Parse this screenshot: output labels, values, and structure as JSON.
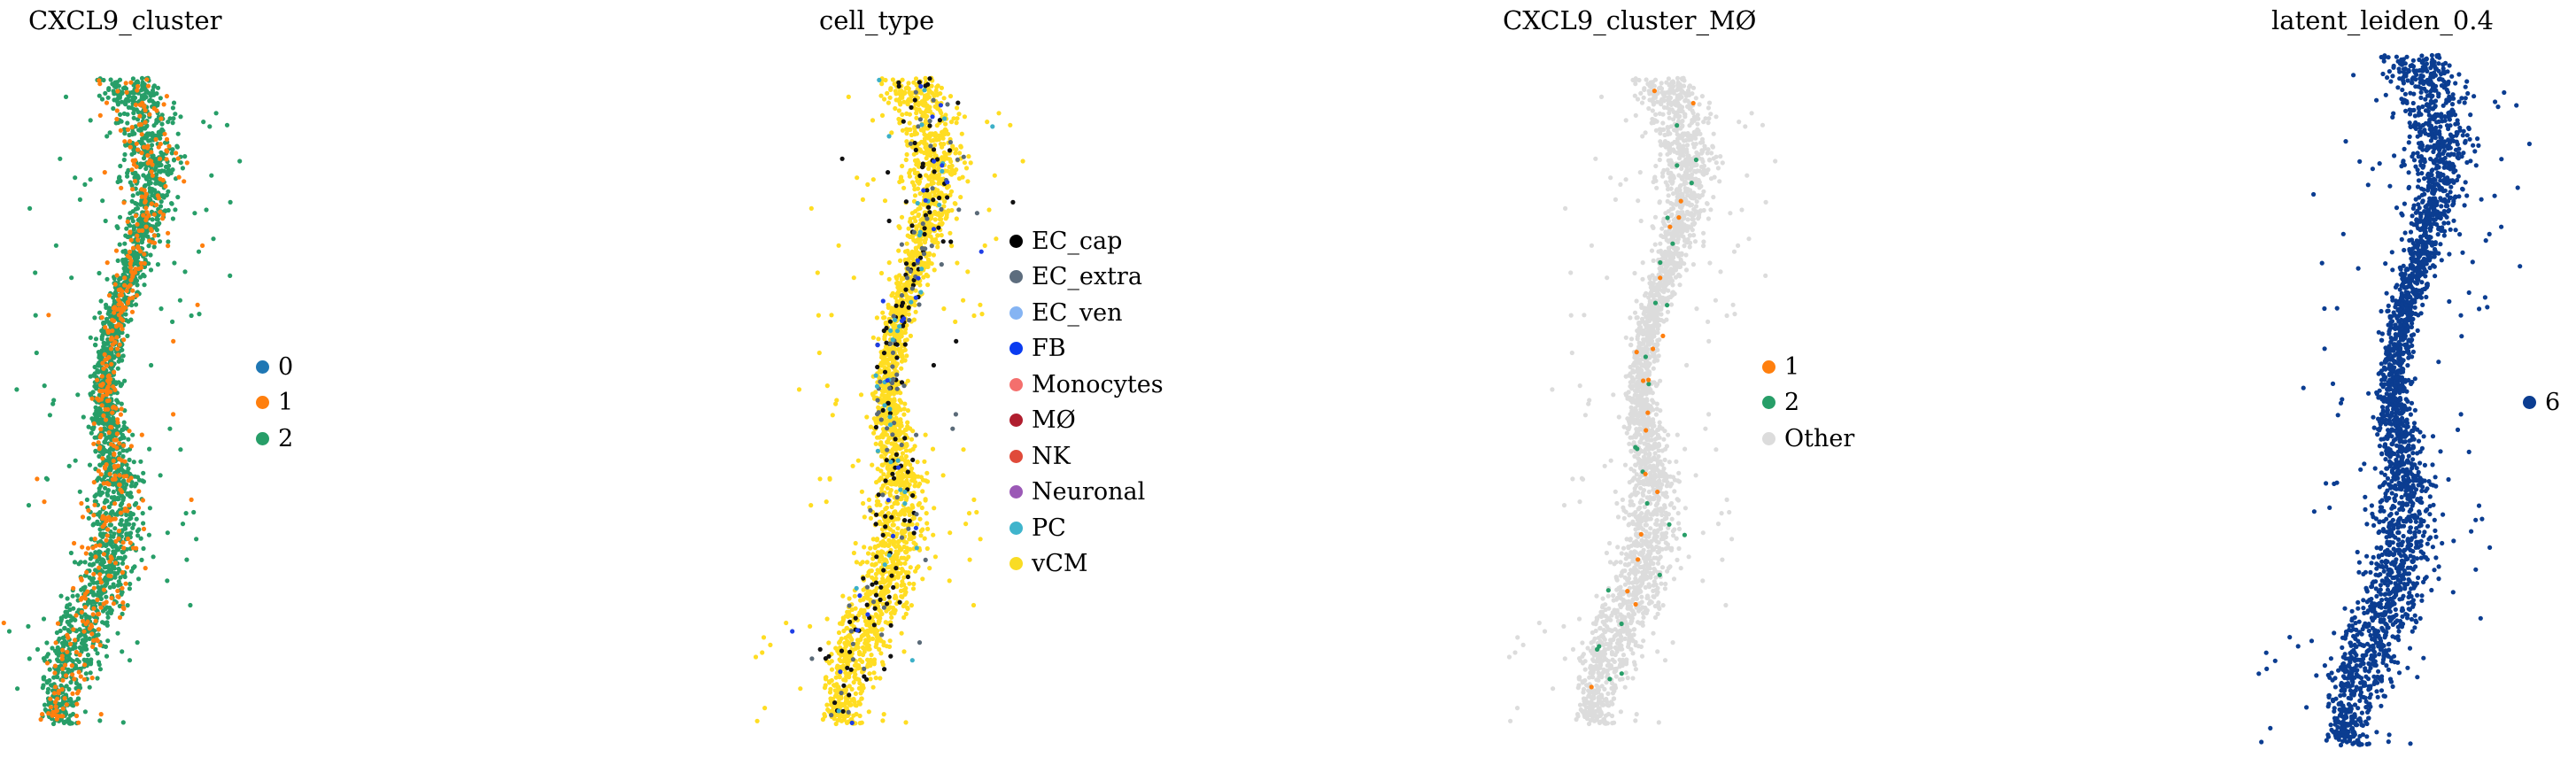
{
  "chart_data": [
    {
      "type": "scatter",
      "title": "CXCL9_cluster",
      "legend": "right",
      "grid": false,
      "series": [
        {
          "name": "2",
          "color": "#279e68",
          "share": 0.8
        },
        {
          "name": "1",
          "color": "#ff7f0e",
          "share": 0.2
        }
      ],
      "legend_entries": [
        {
          "label": "0",
          "color": "#1f77b4"
        },
        {
          "label": "1",
          "color": "#ff7f0e"
        },
        {
          "label": "2",
          "color": "#279e68"
        }
      ]
    },
    {
      "type": "scatter",
      "title": "cell_type",
      "legend": "right",
      "grid": false,
      "series": [
        {
          "name": "vCM",
          "color": "#ffdd22",
          "share": 0.88
        },
        {
          "name": "EC_cap",
          "color": "#111111",
          "share": 0.06
        },
        {
          "name": "EC_extra",
          "color": "#5a6a78",
          "share": 0.03
        },
        {
          "name": "PC",
          "color": "#3cb0c8",
          "share": 0.02
        },
        {
          "name": "FB",
          "color": "#1f3ee6",
          "share": 0.01
        }
      ],
      "legend_entries": [
        {
          "label": "EC_cap",
          "color": "#000000"
        },
        {
          "label": "EC_extra",
          "color": "#5d6d7e"
        },
        {
          "label": "EC_ven",
          "color": "#85b4f3"
        },
        {
          "label": "FB",
          "color": "#0a3bf0"
        },
        {
          "label": "Monocytes",
          "color": "#f46f6d"
        },
        {
          "label": "MØ",
          "color": "#b01e2e"
        },
        {
          "label": "NK",
          "color": "#e04a3a"
        },
        {
          "label": "Neuronal",
          "color": "#9b59b6"
        },
        {
          "label": "PC",
          "color": "#3fb4cc"
        },
        {
          "label": "vCM",
          "color": "#f9dc24"
        }
      ]
    },
    {
      "type": "scatter",
      "title": "CXCL9_cluster_MØ",
      "legend": "right",
      "grid": false,
      "series": [
        {
          "name": "Other",
          "color": "#dcdcdc",
          "share": 0.985
        },
        {
          "name": "2",
          "color": "#279e68",
          "share": 0.009
        },
        {
          "name": "1",
          "color": "#ff7f0e",
          "share": 0.006
        }
      ],
      "legend_entries": [
        {
          "label": "1",
          "color": "#ff7f0e"
        },
        {
          "label": "2",
          "color": "#279e68"
        },
        {
          "label": "Other",
          "color": "#dcdcdc"
        }
      ]
    },
    {
      "type": "scatter",
      "title": "latent_leiden_0.4",
      "legend": "right",
      "grid": false,
      "series": [
        {
          "name": "6",
          "color": "#0b3d91",
          "share": 1.0
        }
      ],
      "legend_entries": [
        {
          "label": "6",
          "color": "#0b3d91"
        }
      ]
    }
  ]
}
